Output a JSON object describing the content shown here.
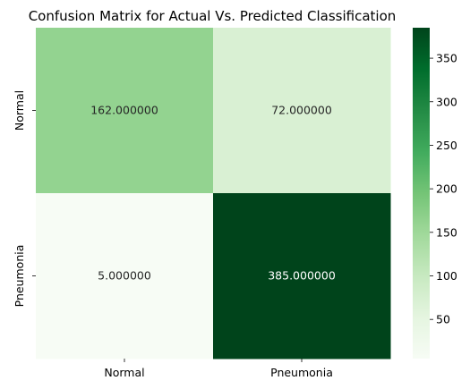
{
  "chart_data": {
    "type": "heatmap",
    "title": "Confusion Matrix for Actual Vs. Predicted Classification",
    "xlabel": "",
    "ylabel": "",
    "row_labels": [
      "Normal",
      "Pneumonia"
    ],
    "col_labels": [
      "Normal",
      "Pneumonia"
    ],
    "values": [
      [
        162,
        72
      ],
      [
        5,
        385
      ]
    ],
    "cell_annotations": [
      [
        "162.000000",
        "72.000000"
      ],
      [
        "5.000000",
        "385.000000"
      ]
    ],
    "colormap": "Greens",
    "colorbar": {
      "range": [
        5,
        385
      ],
      "ticks": [
        50,
        100,
        150,
        200,
        250,
        300,
        350
      ],
      "tick_labels": [
        "50",
        "100",
        "150",
        "200",
        "250",
        "300",
        "350"
      ]
    },
    "grid": false
  }
}
